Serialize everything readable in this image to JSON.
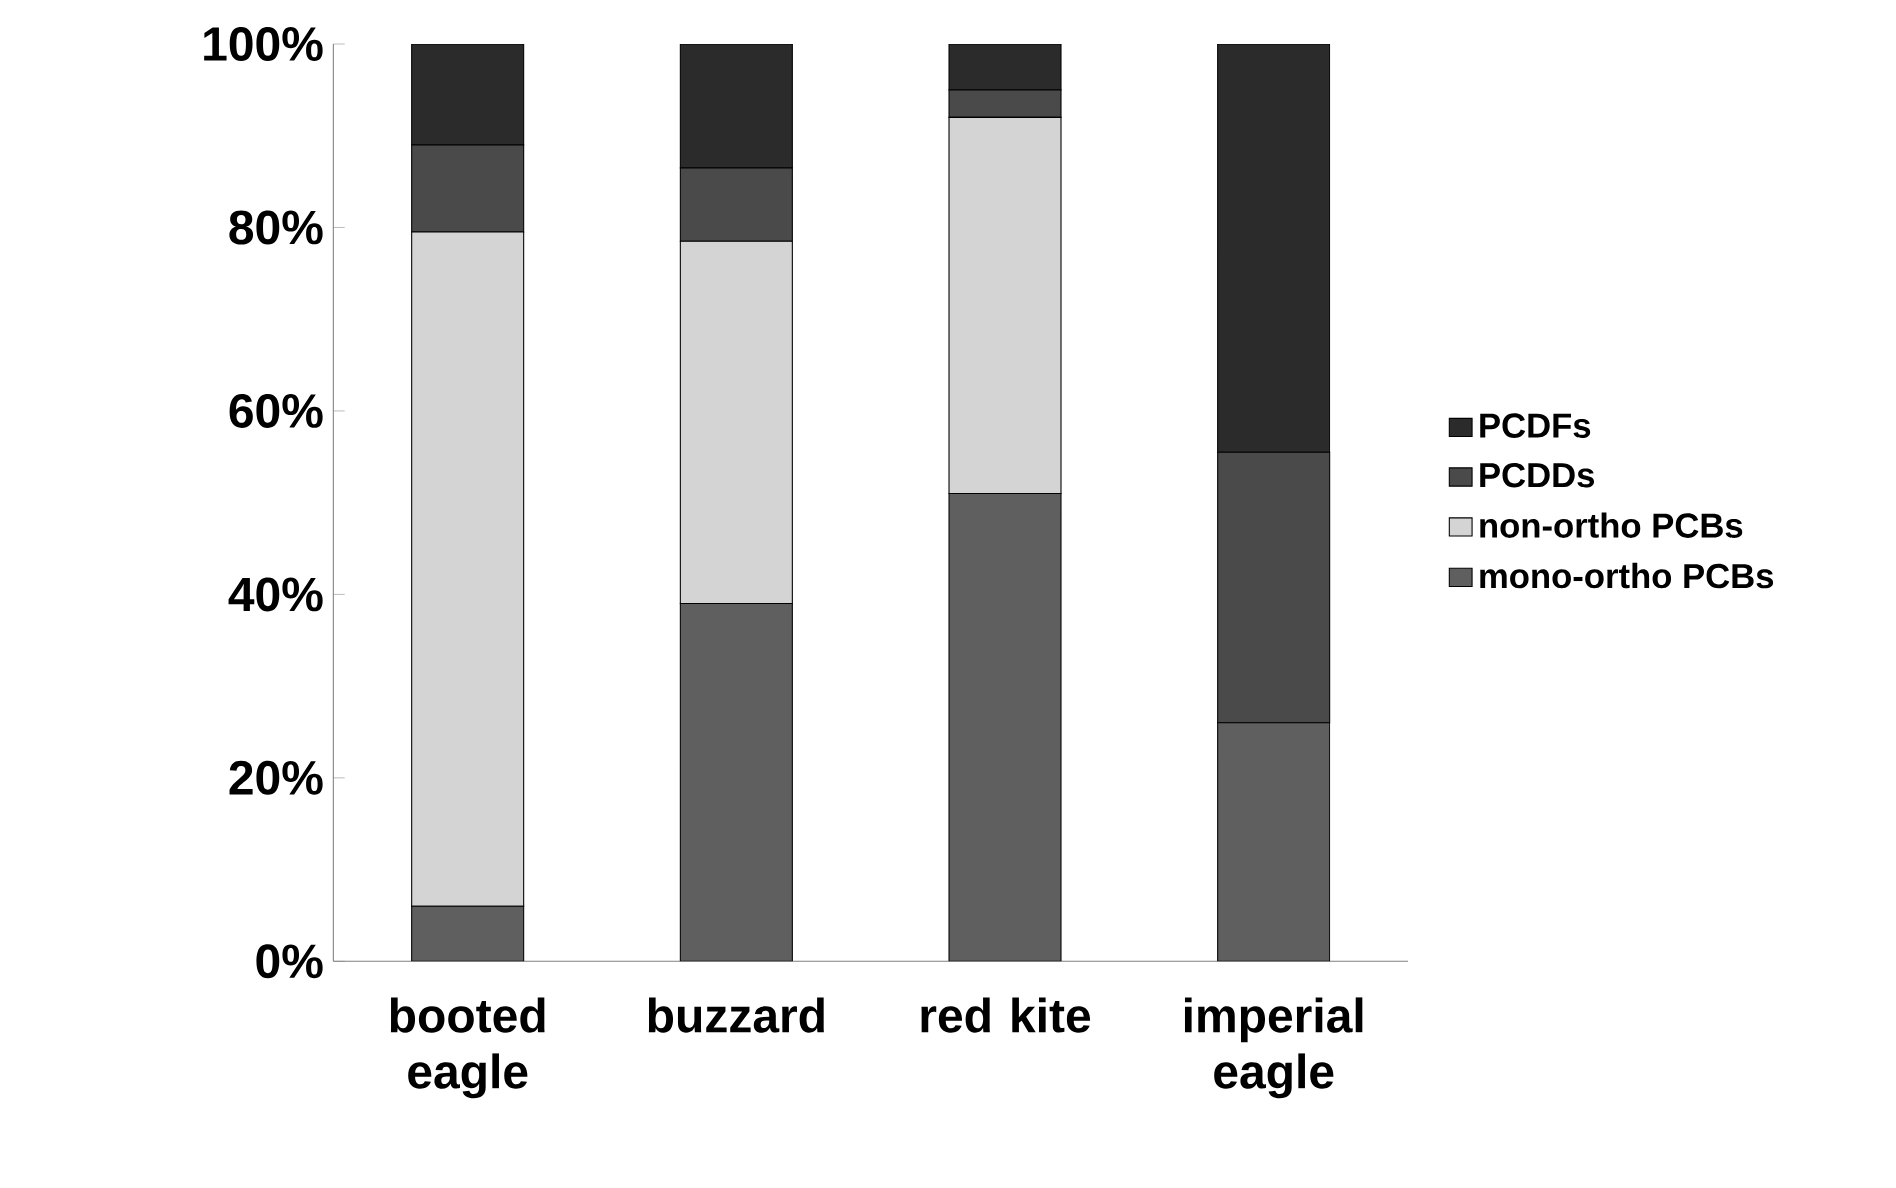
{
  "chart_data": {
    "type": "bar",
    "stacked": true,
    "categories": [
      "booted eagle",
      "buzzard",
      "red kite",
      "imperial eagle"
    ],
    "series": [
      {
        "name": "mono-ortho PCBs",
        "color": "#5f5f5f",
        "values": [
          6,
          39,
          51,
          26
        ]
      },
      {
        "name": "non-ortho PCBs",
        "color": "#d4d4d4",
        "values": [
          73.5,
          39.5,
          41,
          0
        ]
      },
      {
        "name": "PCDDs",
        "color": "#4a4a4a",
        "values": [
          9.5,
          8,
          3,
          29.5
        ]
      },
      {
        "name": "PCDFs",
        "color": "#2b2b2b",
        "values": [
          11,
          13.5,
          5,
          44.5
        ]
      }
    ],
    "ylim": [
      0,
      100
    ],
    "yticks": [
      {
        "value": 0,
        "label": "0%"
      },
      {
        "value": 20,
        "label": "20%"
      },
      {
        "value": 40,
        "label": "40%"
      },
      {
        "value": 60,
        "label": "60%"
      },
      {
        "value": 80,
        "label": "80%"
      },
      {
        "value": 100,
        "label": "100%"
      }
    ],
    "legend": "right"
  }
}
